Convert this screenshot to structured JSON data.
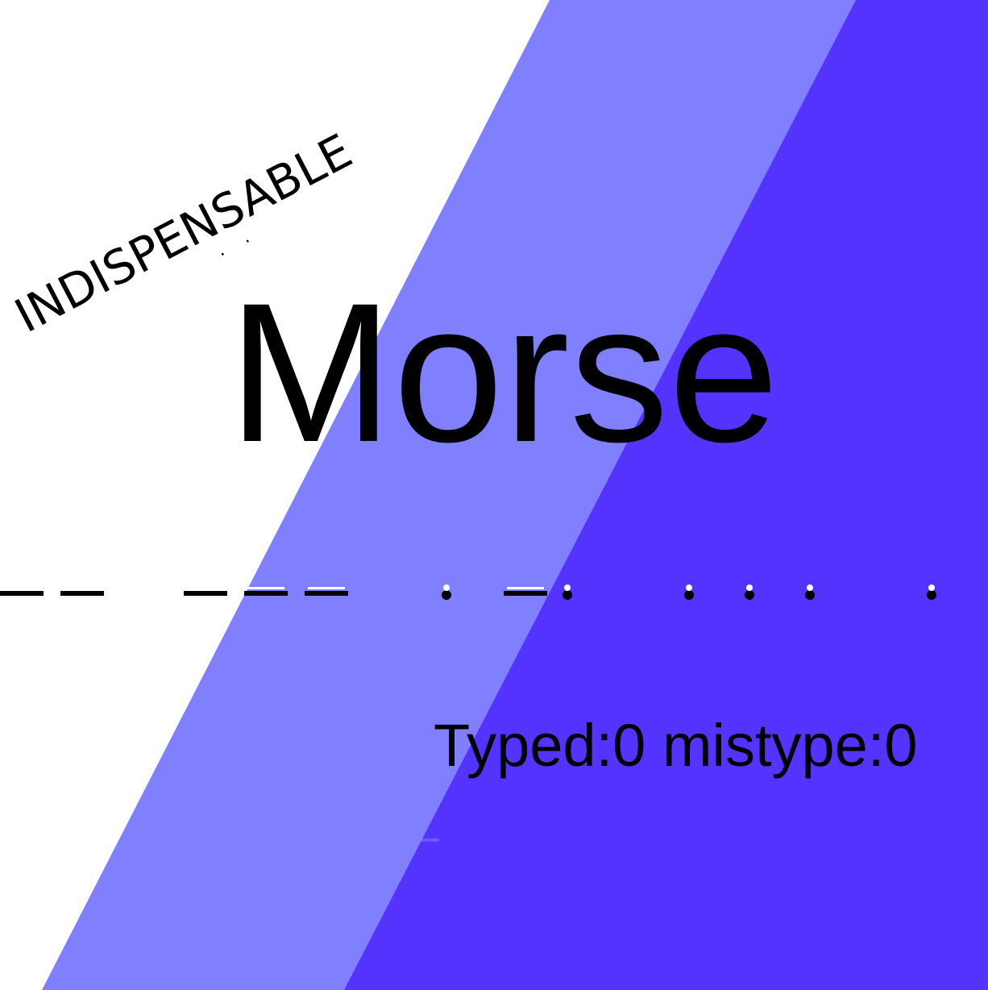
{
  "badge": {
    "text": "INDISPENSABLE",
    "dots": "··"
  },
  "word": "Morse",
  "morse": {
    "letters": [
      [
        "dash",
        "dash"
      ],
      [
        "dash",
        "dash",
        "dash"
      ],
      [
        "dot",
        "dash",
        "dot"
      ],
      [
        "dot",
        "dot",
        "dot"
      ],
      [
        "dot"
      ]
    ]
  },
  "stats": {
    "typed_label": "Typed:",
    "typed": 0,
    "mistype_label": "mistype:",
    "mistype": 0
  },
  "colors": {
    "band_light": "#8080ff",
    "band_dark": "#5533ff",
    "background": "#ffffff",
    "ink": "#000000",
    "highlight": "#ffffff"
  }
}
